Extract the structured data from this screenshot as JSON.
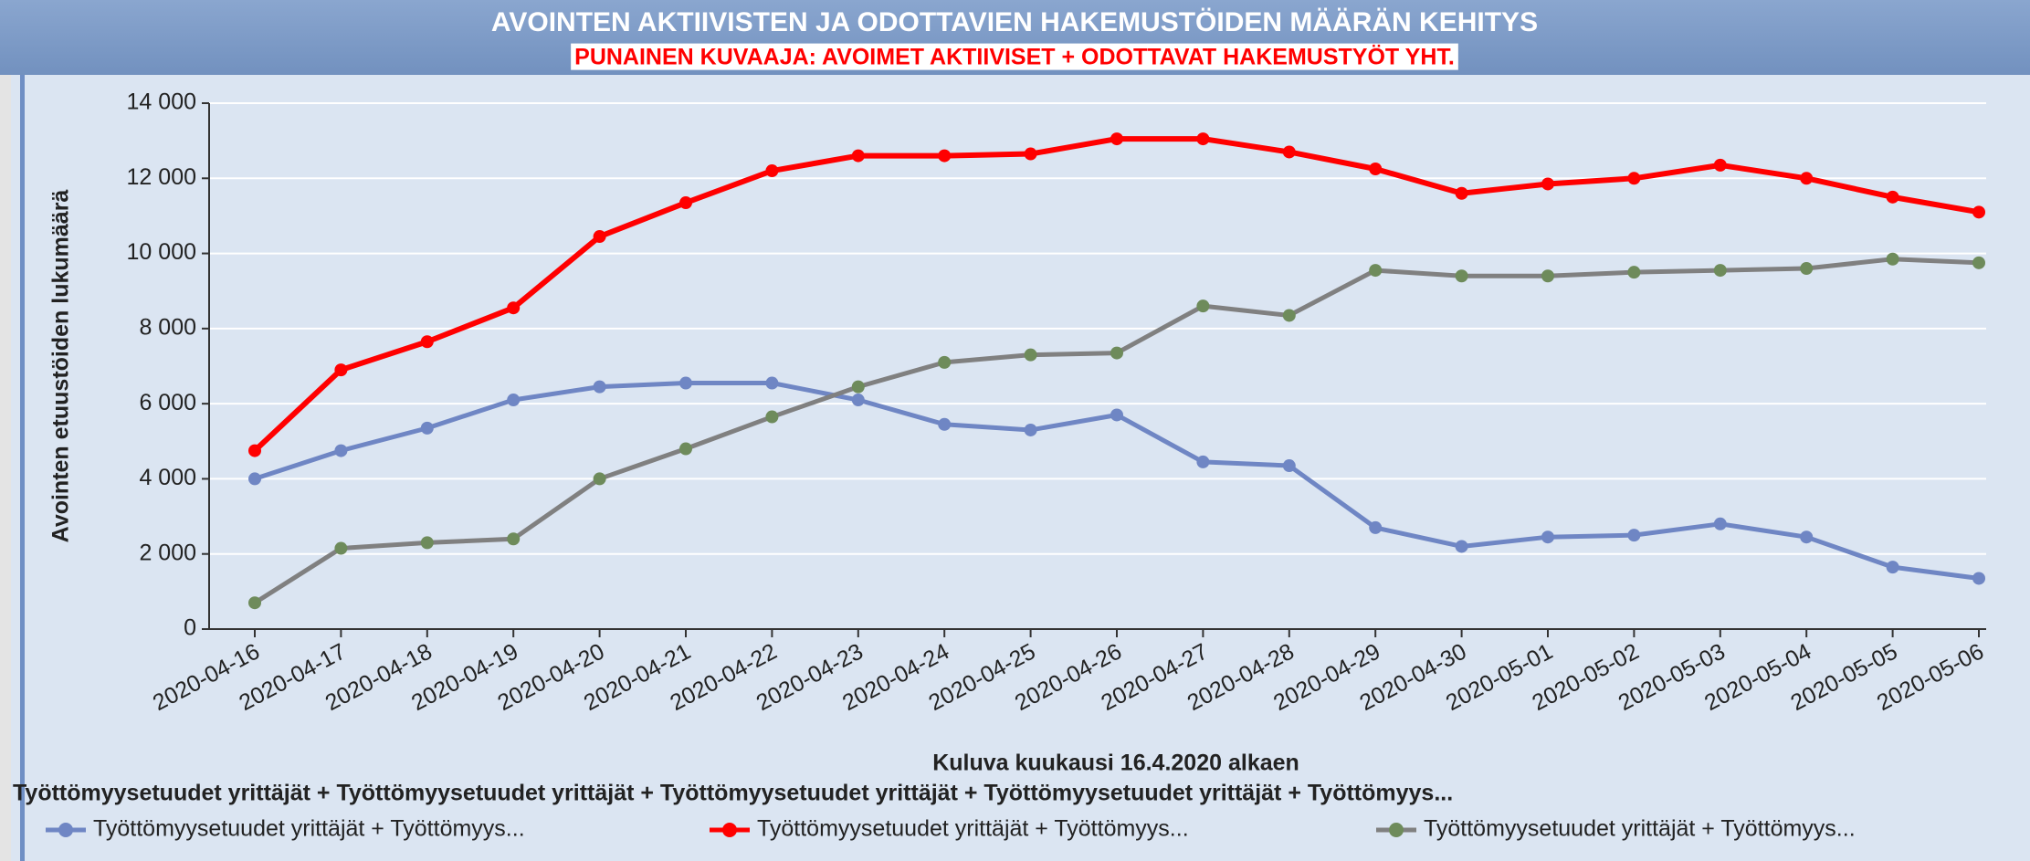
{
  "chart_data": {
    "type": "line",
    "title": "AVOINTEN AKTIIVISTEN JA ODOTTAVIEN HAKEMUSTÖIDEN MÄÄRÄN KEHITYS",
    "subtitle": "PUNAINEN KUVAAJA: AVOIMET AKTIIVISET + ODOTTAVAT HAKEMUSTYÖT YHT.",
    "y_label": "Avointen etuustöiden lukumäärä",
    "x_label": "Kuluva kuukausi 16.4.2020 alkaen",
    "legend_title": "Työttömyysetuudet yrittäjät + Työttömyysetuudet yrittäjät + Työttömyysetuudet yrittäjät + Työttömyysetuudet yrittäjät + Työttömyys...",
    "categories": [
      "2020-04-16",
      "2020-04-17",
      "2020-04-18",
      "2020-04-19",
      "2020-04-20",
      "2020-04-21",
      "2020-04-22",
      "2020-04-23",
      "2020-04-24",
      "2020-04-25",
      "2020-04-26",
      "2020-04-27",
      "2020-04-28",
      "2020-04-29",
      "2020-04-30",
      "2020-05-01",
      "2020-05-02",
      "2020-05-03",
      "2020-05-04",
      "2020-05-05",
      "2020-05-06"
    ],
    "series": [
      {
        "name": "Työttömyysetuudet yrittäjät + Työttömyys...",
        "color": "#6f86c4",
        "marker_color": "#6f86c4",
        "values": [
          4000,
          4750,
          5350,
          6100,
          6450,
          6550,
          6550,
          6100,
          5450,
          5300,
          5700,
          4450,
          4350,
          2700,
          2200,
          2450,
          2500,
          2800,
          2450,
          1650,
          1350
        ]
      },
      {
        "name": "Työttömyysetuudet yrittäjät + Työttömyys...",
        "color": "#ff0000",
        "marker_color": "#ff0000",
        "values": [
          4750,
          6900,
          7650,
          8550,
          10450,
          11350,
          12200,
          12600,
          12600,
          12650,
          13050,
          13050,
          12700,
          12250,
          11600,
          11850,
          12000,
          12350,
          12000,
          11500,
          11100
        ]
      },
      {
        "name": "Työttömyysetuudet yrittäjät + Työttömyys...",
        "color": "#808080",
        "marker_color": "#6e8b5b",
        "values": [
          700,
          2150,
          2300,
          2400,
          4000,
          4800,
          5650,
          6450,
          7100,
          7300,
          7350,
          8600,
          8350,
          9550,
          9400,
          9400,
          9500,
          9550,
          9600,
          9850,
          9750
        ]
      }
    ],
    "ylim": [
      0,
      14000
    ],
    "yticks": [
      0,
      {
        "value": 2000,
        "label": "2 000"
      },
      {
        "value": 4000,
        "label": "4 000"
      },
      {
        "value": 6000,
        "label": "6 000"
      },
      {
        "value": 8000,
        "label": "8 000"
      },
      {
        "value": 10000,
        "label": "10 000"
      },
      {
        "value": 12000,
        "label": "12 000"
      },
      {
        "value": 14000,
        "label": "14 000"
      }
    ],
    "grid": true
  }
}
